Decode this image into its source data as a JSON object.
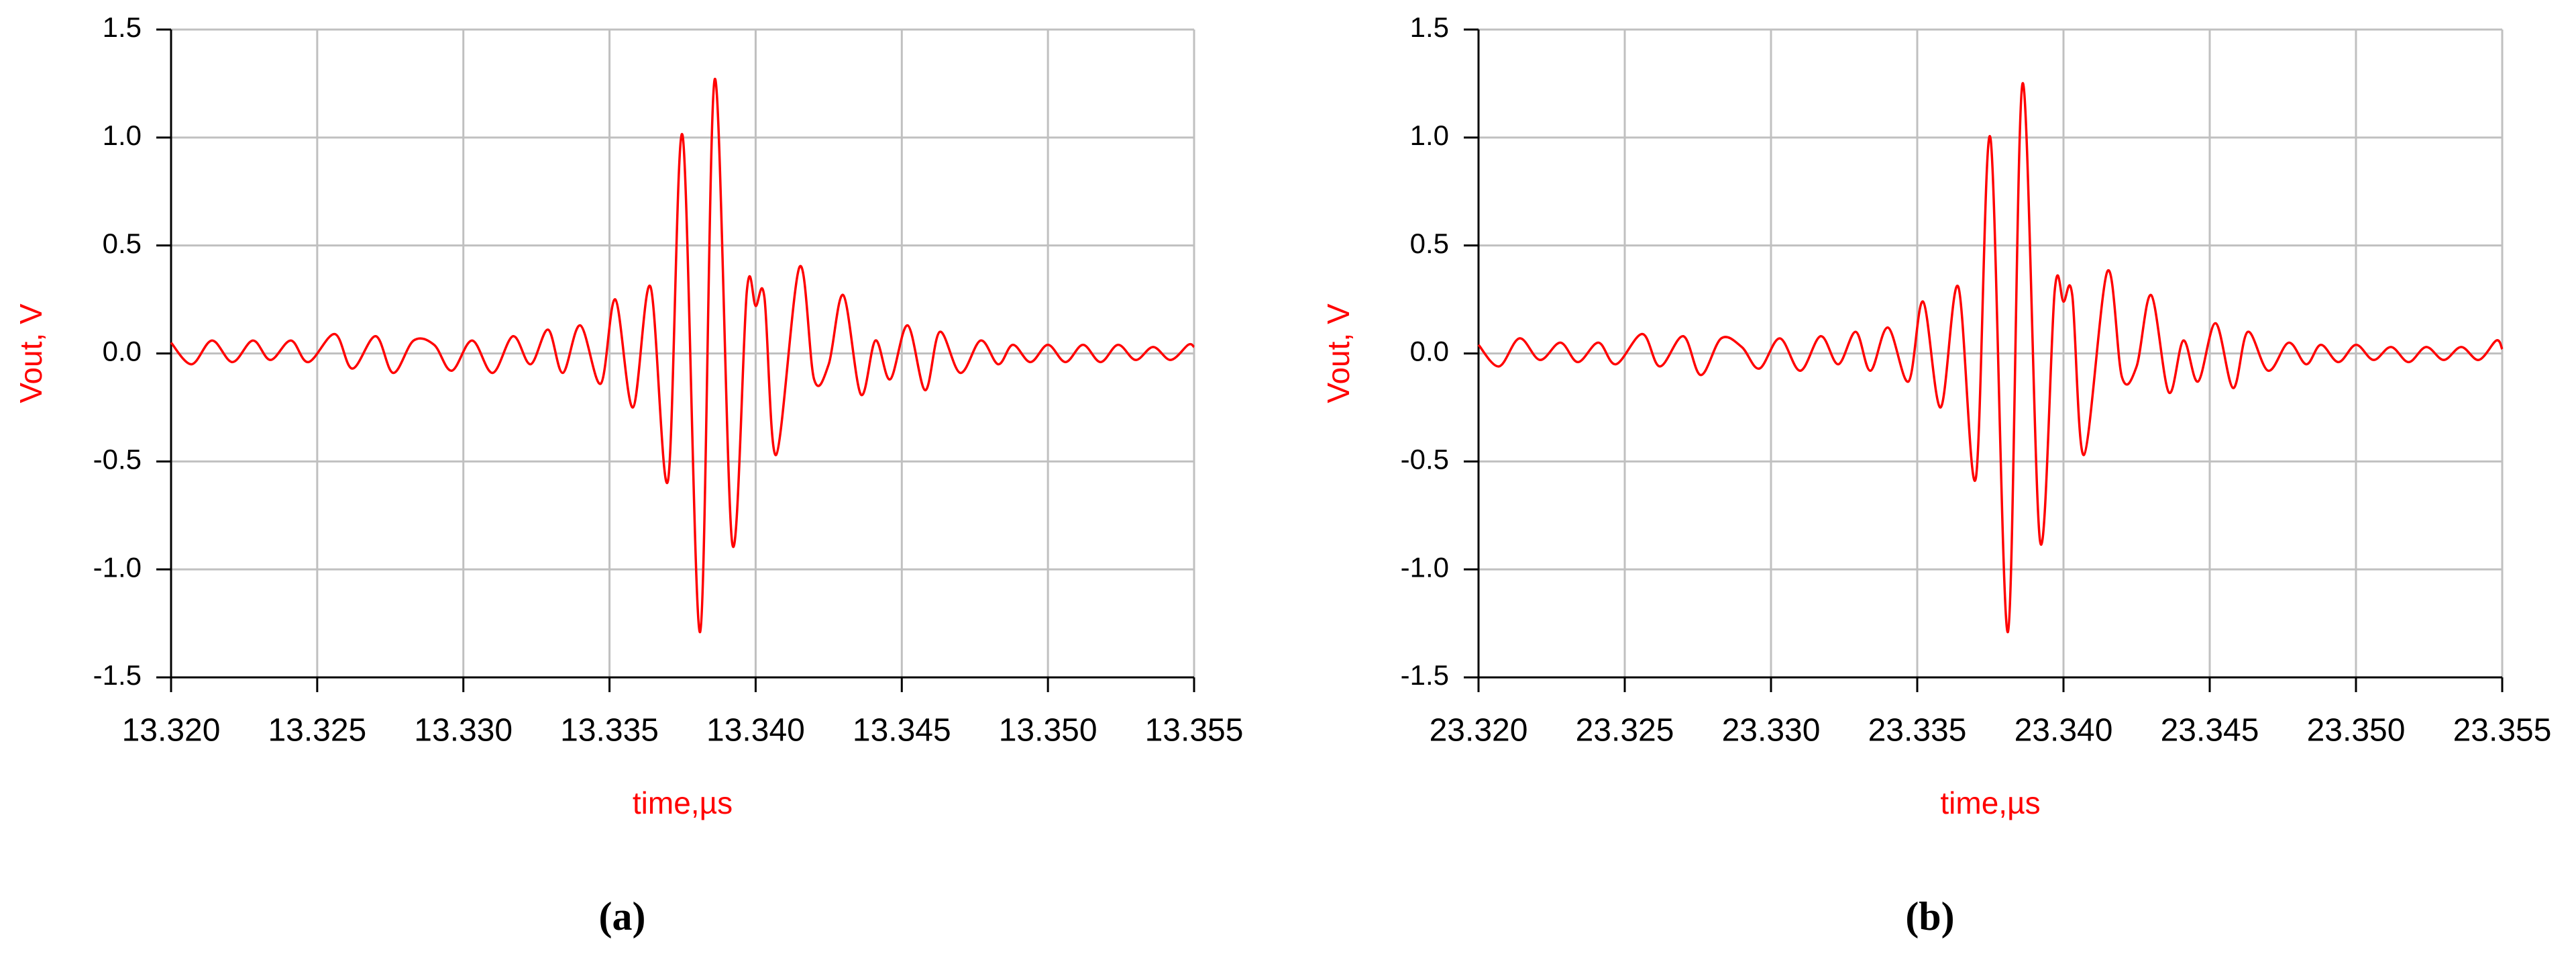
{
  "chart_data": [
    {
      "type": "line",
      "ylabel": "Vout, V",
      "xlabel": "time,µs",
      "caption": "(a)",
      "color": "#ff0000",
      "grid": true,
      "xlim": [
        13.32,
        13.355
      ],
      "xticks": [
        {
          "value": 13.32,
          "label": "13.320"
        },
        13.325,
        {
          "value": 13.33,
          "label": "13.330"
        },
        13.335,
        {
          "value": 13.34,
          "label": "13.340"
        },
        13.345,
        {
          "value": 13.35,
          "label": "13.350"
        },
        13.355
      ],
      "ylim": [
        -1.5,
        1.5
      ],
      "yticks": [
        -1.5,
        {
          "value": -1.0,
          "label": "-1.0"
        },
        -0.5,
        {
          "value": 0.0,
          "label": "0.0"
        },
        0.5,
        {
          "value": 1.0,
          "label": "1.0"
        },
        1.5
      ],
      "x": [
        13.32,
        13.3207,
        13.3214,
        13.3221,
        13.3228,
        13.3234,
        13.3241,
        13.3247,
        13.3256,
        13.3262,
        13.327,
        13.3276,
        13.3283,
        13.329,
        13.3296,
        13.3303,
        13.331,
        13.3317,
        13.3323,
        13.3329,
        13.3334,
        13.334,
        13.3347,
        13.3352,
        13.3358,
        13.3364,
        13.337,
        13.3375,
        13.3381,
        13.3386,
        13.3392,
        13.3397,
        13.34,
        13.3403,
        13.3407,
        13.3415,
        13.342,
        13.3425,
        13.343,
        13.3436,
        13.3441,
        13.3446,
        13.3452,
        13.3458,
        13.3463,
        13.347,
        13.3477,
        13.3483,
        13.3488,
        13.3494,
        13.35,
        13.3506,
        13.3512,
        13.3518,
        13.3524,
        13.353,
        13.3536,
        13.3542,
        13.3548,
        13.355
      ],
      "values": [
        0.05,
        -0.05,
        0.06,
        -0.04,
        0.06,
        -0.03,
        0.06,
        -0.04,
        0.09,
        -0.07,
        0.08,
        -0.09,
        0.06,
        0.04,
        -0.08,
        0.06,
        -0.09,
        0.08,
        -0.05,
        0.11,
        -0.09,
        0.13,
        -0.14,
        0.25,
        -0.25,
        0.31,
        -0.59,
        1.01,
        -1.29,
        1.27,
        -0.88,
        0.29,
        0.22,
        0.26,
        -0.47,
        0.4,
        -0.12,
        -0.05,
        0.27,
        -0.19,
        0.06,
        -0.12,
        0.13,
        -0.17,
        0.1,
        -0.09,
        0.06,
        -0.05,
        0.04,
        -0.04,
        0.04,
        -0.04,
        0.04,
        -0.04,
        0.04,
        -0.03,
        0.03,
        -0.03,
        0.04,
        0.03
      ]
    },
    {
      "type": "line",
      "ylabel": "Vout, V",
      "xlabel": "time,µs",
      "caption": "(b)",
      "color": "#ff0000",
      "grid": true,
      "xlim": [
        23.32,
        23.355
      ],
      "xticks": [
        {
          "value": 23.32,
          "label": "23.320"
        },
        23.325,
        {
          "value": 23.33,
          "label": "23.330"
        },
        23.335,
        {
          "value": 23.34,
          "label": "23.340"
        },
        23.345,
        {
          "value": 23.35,
          "label": "23.350"
        },
        23.355
      ],
      "ylim": [
        -1.5,
        1.5
      ],
      "yticks": [
        -1.5,
        {
          "value": -1.0,
          "label": "-1.0"
        },
        -0.5,
        {
          "value": 0.0,
          "label": "0.0"
        },
        0.5,
        {
          "value": 1.0,
          "label": "1.0"
        },
        1.5
      ],
      "x": [
        23.32,
        23.3207,
        23.3214,
        23.3221,
        23.3228,
        23.3234,
        23.3241,
        23.3247,
        23.3256,
        23.3262,
        23.327,
        23.3276,
        23.3283,
        23.329,
        23.3296,
        23.3303,
        23.331,
        23.3317,
        23.3323,
        23.3329,
        23.3334,
        23.334,
        23.3347,
        23.3352,
        23.3358,
        23.3364,
        23.337,
        23.3375,
        23.3381,
        23.3386,
        23.3392,
        23.3397,
        23.34,
        23.3403,
        23.3407,
        23.3415,
        23.342,
        23.3425,
        23.343,
        23.3436,
        23.3441,
        23.3446,
        23.3452,
        23.3458,
        23.3463,
        23.347,
        23.3477,
        23.3483,
        23.3488,
        23.3494,
        23.35,
        23.3506,
        23.3512,
        23.3518,
        23.3524,
        23.353,
        23.3536,
        23.3542,
        23.3548,
        23.355
      ],
      "values": [
        0.04,
        -0.06,
        0.07,
        -0.03,
        0.05,
        -0.04,
        0.05,
        -0.05,
        0.09,
        -0.06,
        0.08,
        -0.1,
        0.07,
        0.03,
        -0.07,
        0.07,
        -0.08,
        0.08,
        -0.05,
        0.1,
        -0.08,
        0.12,
        -0.13,
        0.24,
        -0.25,
        0.31,
        -0.58,
        1.0,
        -1.29,
        1.25,
        -0.87,
        0.29,
        0.24,
        0.27,
        -0.47,
        0.38,
        -0.11,
        -0.06,
        0.27,
        -0.18,
        0.06,
        -0.13,
        0.14,
        -0.16,
        0.1,
        -0.08,
        0.05,
        -0.05,
        0.04,
        -0.04,
        0.04,
        -0.03,
        0.03,
        -0.04,
        0.03,
        -0.03,
        0.03,
        -0.03,
        0.06,
        0.02
      ]
    }
  ]
}
